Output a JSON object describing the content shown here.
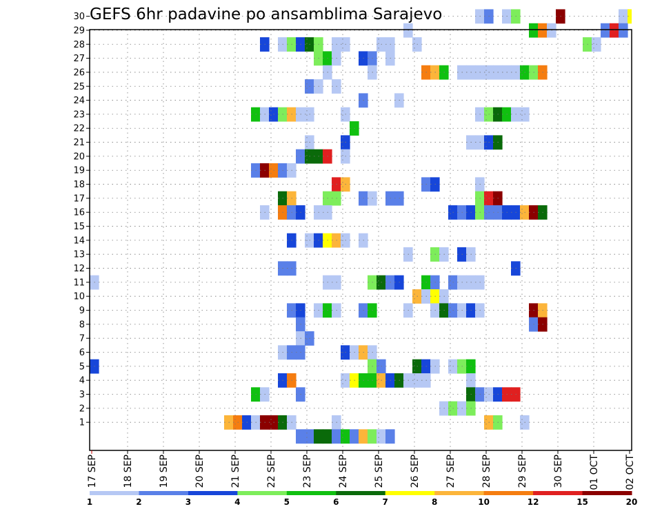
{
  "chart_data": {
    "type": "heatmap",
    "title": "GEFS 6hr padavine po ansamblima Sarajevo",
    "xlabel": "",
    "ylabel": "",
    "y_ticks": [
      "1",
      "2",
      "3",
      "4",
      "5",
      "6",
      "7",
      "8",
      "9",
      "10",
      "11",
      "12",
      "13",
      "14",
      "15",
      "16",
      "17",
      "18",
      "19",
      "20",
      "21",
      "22",
      "23",
      "24",
      "25",
      "26",
      "27",
      "28",
      "29",
      "30"
    ],
    "x_ticks": [
      "17 SEP",
      "18 SEP",
      "19 SEP",
      "20 SEP",
      "21 SEP",
      "22 SEP",
      "23 SEP",
      "24 SEP",
      "25 SEP",
      "26 SEP",
      "27 SEP",
      "28 SEP",
      "29 SEP",
      "30 SEP",
      "01 OCT",
      "02 OCT"
    ],
    "steps_per_day": 4,
    "grid": true,
    "colorbar": {
      "labels": [
        "1",
        "2",
        "3",
        "4",
        "5",
        "6",
        "7",
        "8",
        "10",
        "12",
        "15",
        "20"
      ],
      "colors": [
        "#b6c8f4",
        "#5a80e8",
        "#1746d9",
        "#7ded5b",
        "#10c010",
        "#0a6a0a",
        "#ffff00",
        "#fcb53a",
        "#f57d10",
        "#e02020",
        "#8b0000"
      ]
    },
    "cells": [
      [
        30,
        43,
        0
      ],
      [
        30,
        44,
        1
      ],
      [
        30,
        46,
        0
      ],
      [
        30,
        47,
        3
      ],
      [
        30,
        52,
        10
      ],
      [
        30,
        59,
        0
      ],
      [
        30,
        60,
        6
      ],
      [
        30,
        61,
        0
      ],
      [
        29,
        35,
        0
      ],
      [
        29,
        49,
        4
      ],
      [
        29,
        50,
        8
      ],
      [
        29,
        51,
        0
      ],
      [
        29,
        57,
        1
      ],
      [
        29,
        58,
        9
      ],
      [
        29,
        59,
        1
      ],
      [
        28,
        19,
        2
      ],
      [
        28,
        21,
        0
      ],
      [
        28,
        22,
        3
      ],
      [
        28,
        23,
        2
      ],
      [
        28,
        24,
        5
      ],
      [
        28,
        25,
        3
      ],
      [
        28,
        27,
        0
      ],
      [
        28,
        28,
        0
      ],
      [
        28,
        32,
        0
      ],
      [
        28,
        33,
        0
      ],
      [
        28,
        36,
        0
      ],
      [
        28,
        55,
        3
      ],
      [
        28,
        56,
        0
      ],
      [
        27,
        25,
        3
      ],
      [
        27,
        26,
        4
      ],
      [
        27,
        27,
        0
      ],
      [
        27,
        30,
        2
      ],
      [
        27,
        31,
        1
      ],
      [
        27,
        33,
        0
      ],
      [
        26,
        26,
        0
      ],
      [
        26,
        31,
        0
      ],
      [
        26,
        37,
        8
      ],
      [
        26,
        38,
        7
      ],
      [
        26,
        39,
        4
      ],
      [
        26,
        41,
        0
      ],
      [
        26,
        42,
        0
      ],
      [
        26,
        43,
        0
      ],
      [
        26,
        44,
        0
      ],
      [
        26,
        45,
        0
      ],
      [
        26,
        46,
        0
      ],
      [
        26,
        47,
        0
      ],
      [
        26,
        48,
        4
      ],
      [
        26,
        49,
        3
      ],
      [
        26,
        50,
        8
      ],
      [
        25,
        24,
        1
      ],
      [
        25,
        25,
        0
      ],
      [
        25,
        27,
        0
      ],
      [
        24,
        30,
        1
      ],
      [
        24,
        34,
        0
      ],
      [
        23,
        18,
        4
      ],
      [
        23,
        19,
        0
      ],
      [
        23,
        20,
        2
      ],
      [
        23,
        21,
        3
      ],
      [
        23,
        22,
        7
      ],
      [
        23,
        23,
        0
      ],
      [
        23,
        24,
        0
      ],
      [
        23,
        28,
        0
      ],
      [
        23,
        43,
        0
      ],
      [
        23,
        44,
        3
      ],
      [
        23,
        45,
        5
      ],
      [
        23,
        46,
        4
      ],
      [
        23,
        47,
        0
      ],
      [
        23,
        48,
        0
      ],
      [
        22,
        29,
        4
      ],
      [
        21,
        24,
        0
      ],
      [
        21,
        28,
        2
      ],
      [
        21,
        42,
        0
      ],
      [
        21,
        43,
        0
      ],
      [
        21,
        44,
        2
      ],
      [
        21,
        45,
        5
      ],
      [
        20,
        23,
        1
      ],
      [
        20,
        24,
        5
      ],
      [
        20,
        25,
        5
      ],
      [
        20,
        26,
        9
      ],
      [
        20,
        28,
        0
      ],
      [
        19,
        18,
        1
      ],
      [
        19,
        19,
        10
      ],
      [
        19,
        20,
        8
      ],
      [
        19,
        21,
        1
      ],
      [
        19,
        22,
        0
      ],
      [
        18,
        27,
        9
      ],
      [
        18,
        28,
        7
      ],
      [
        18,
        37,
        1
      ],
      [
        18,
        38,
        2
      ],
      [
        18,
        43,
        0
      ],
      [
        17,
        21,
        5
      ],
      [
        17,
        22,
        7
      ],
      [
        17,
        26,
        3
      ],
      [
        17,
        27,
        3
      ],
      [
        17,
        30,
        1
      ],
      [
        17,
        31,
        0
      ],
      [
        17,
        33,
        1
      ],
      [
        17,
        34,
        1
      ],
      [
        17,
        43,
        3
      ],
      [
        17,
        44,
        9
      ],
      [
        17,
        45,
        10
      ],
      [
        16,
        19,
        0
      ],
      [
        16,
        21,
        8
      ],
      [
        16,
        22,
        1
      ],
      [
        16,
        23,
        2
      ],
      [
        16,
        25,
        0
      ],
      [
        16,
        26,
        0
      ],
      [
        16,
        40,
        2
      ],
      [
        16,
        41,
        1
      ],
      [
        16,
        42,
        2
      ],
      [
        16,
        43,
        3
      ],
      [
        16,
        44,
        1
      ],
      [
        16,
        45,
        1
      ],
      [
        16,
        46,
        2
      ],
      [
        16,
        47,
        2
      ],
      [
        16,
        48,
        7
      ],
      [
        16,
        49,
        10
      ],
      [
        16,
        50,
        5
      ],
      [
        14,
        22,
        2
      ],
      [
        14,
        24,
        0
      ],
      [
        14,
        25,
        2
      ],
      [
        14,
        26,
        6
      ],
      [
        14,
        27,
        7
      ],
      [
        14,
        28,
        0
      ],
      [
        14,
        30,
        0
      ],
      [
        13,
        35,
        0
      ],
      [
        13,
        38,
        3
      ],
      [
        13,
        39,
        0
      ],
      [
        13,
        41,
        2
      ],
      [
        13,
        42,
        0
      ],
      [
        12,
        21,
        1
      ],
      [
        12,
        22,
        1
      ],
      [
        12,
        47,
        2
      ],
      [
        11,
        0,
        0
      ],
      [
        11,
        26,
        0
      ],
      [
        11,
        27,
        0
      ],
      [
        11,
        31,
        3
      ],
      [
        11,
        32,
        5
      ],
      [
        11,
        33,
        1
      ],
      [
        11,
        34,
        2
      ],
      [
        11,
        37,
        4
      ],
      [
        11,
        38,
        1
      ],
      [
        11,
        40,
        1
      ],
      [
        11,
        41,
        0
      ],
      [
        11,
        42,
        0
      ],
      [
        11,
        43,
        0
      ],
      [
        10,
        36,
        7
      ],
      [
        10,
        37,
        0
      ],
      [
        10,
        38,
        6
      ],
      [
        10,
        39,
        0
      ],
      [
        9,
        22,
        1
      ],
      [
        9,
        23,
        2
      ],
      [
        9,
        25,
        0
      ],
      [
        9,
        26,
        4
      ],
      [
        9,
        27,
        0
      ],
      [
        9,
        30,
        1
      ],
      [
        9,
        31,
        4
      ],
      [
        9,
        35,
        0
      ],
      [
        9,
        38,
        0
      ],
      [
        9,
        39,
        5
      ],
      [
        9,
        40,
        1
      ],
      [
        9,
        41,
        0
      ],
      [
        9,
        42,
        2
      ],
      [
        9,
        43,
        0
      ],
      [
        9,
        49,
        10
      ],
      [
        9,
        50,
        7
      ],
      [
        8,
        23,
        1
      ],
      [
        8,
        49,
        1
      ],
      [
        8,
        50,
        10
      ],
      [
        7,
        23,
        0
      ],
      [
        7,
        24,
        1
      ],
      [
        6,
        21,
        0
      ],
      [
        6,
        22,
        1
      ],
      [
        6,
        23,
        1
      ],
      [
        6,
        28,
        2
      ],
      [
        6,
        29,
        0
      ],
      [
        6,
        30,
        7
      ],
      [
        6,
        31,
        0
      ],
      [
        5,
        0,
        2
      ],
      [
        5,
        31,
        3
      ],
      [
        5,
        32,
        1
      ],
      [
        5,
        36,
        5
      ],
      [
        5,
        37,
        2
      ],
      [
        5,
        38,
        0
      ],
      [
        5,
        40,
        0
      ],
      [
        5,
        41,
        3
      ],
      [
        5,
        42,
        4
      ],
      [
        4,
        21,
        2
      ],
      [
        4,
        22,
        8
      ],
      [
        4,
        28,
        0
      ],
      [
        4,
        29,
        6
      ],
      [
        4,
        30,
        4
      ],
      [
        4,
        31,
        4
      ],
      [
        4,
        32,
        7
      ],
      [
        4,
        33,
        2
      ],
      [
        4,
        34,
        5
      ],
      [
        4,
        35,
        0
      ],
      [
        4,
        36,
        0
      ],
      [
        4,
        37,
        0
      ],
      [
        4,
        42,
        0
      ],
      [
        3,
        18,
        4
      ],
      [
        3,
        19,
        0
      ],
      [
        3,
        23,
        1
      ],
      [
        3,
        42,
        5
      ],
      [
        3,
        43,
        1
      ],
      [
        3,
        44,
        0
      ],
      [
        3,
        45,
        2
      ],
      [
        3,
        46,
        9
      ],
      [
        3,
        47,
        9
      ],
      [
        2,
        39,
        0
      ],
      [
        2,
        40,
        3
      ],
      [
        2,
        41,
        0
      ],
      [
        2,
        42,
        3
      ],
      [
        1,
        15,
        7
      ],
      [
        1,
        16,
        8
      ],
      [
        1,
        17,
        2
      ],
      [
        1,
        18,
        0
      ],
      [
        1,
        19,
        10
      ],
      [
        1,
        20,
        10
      ],
      [
        1,
        21,
        5
      ],
      [
        1,
        22,
        0
      ],
      [
        1,
        27,
        0
      ],
      [
        1,
        44,
        7
      ],
      [
        1,
        45,
        3
      ],
      [
        1,
        48,
        0
      ],
      [
        0,
        23,
        1
      ],
      [
        0,
        24,
        1
      ],
      [
        0,
        25,
        5
      ],
      [
        0,
        26,
        5
      ],
      [
        0,
        27,
        1
      ],
      [
        0,
        28,
        4
      ],
      [
        0,
        29,
        1
      ],
      [
        0,
        30,
        7
      ],
      [
        0,
        31,
        3
      ],
      [
        0,
        32,
        0
      ],
      [
        0,
        33,
        1
      ]
    ]
  }
}
